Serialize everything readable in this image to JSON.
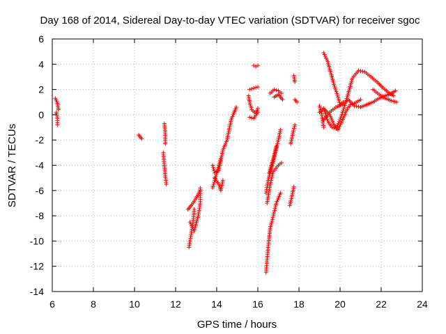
{
  "chart_data": {
    "type": "scatter",
    "title": "Day 168 of 2014, Sidereal Day-to-day VTEC variation (SDTVAR) for receiver sgoc",
    "xlabel": "GPS time / hours",
    "ylabel": "SDTVAR / TECUs",
    "xlim": [
      6,
      24
    ],
    "ylim": [
      -14,
      6
    ],
    "xticks": [
      6,
      8,
      10,
      12,
      14,
      16,
      18,
      20,
      22,
      24
    ],
    "yticks": [
      -14,
      -12,
      -10,
      -8,
      -6,
      -4,
      -2,
      0,
      2,
      4,
      6
    ],
    "grid": true,
    "marker": "plus",
    "marker_color": "#ff0000",
    "series": [
      {
        "name": "sgoc",
        "segments": [
          [
            [
              6.15,
              1.3
            ],
            [
              6.25,
              0.9
            ],
            [
              6.3,
              0.4
            ]
          ],
          [
            [
              6.2,
              0.2
            ],
            [
              6.25,
              -0.3
            ],
            [
              6.25,
              -0.8
            ]
          ],
          [
            [
              10.2,
              -1.6
            ],
            [
              10.35,
              -1.9
            ]
          ],
          [
            [
              11.45,
              -0.7
            ],
            [
              11.5,
              -1.5
            ],
            [
              11.5,
              -2.3
            ]
          ],
          [
            [
              11.4,
              -3.0
            ],
            [
              11.45,
              -4.0
            ],
            [
              11.5,
              -4.8
            ],
            [
              11.55,
              -5.5
            ]
          ],
          [
            [
              12.65,
              -10.5
            ],
            [
              12.75,
              -9.5
            ],
            [
              12.85,
              -8.5
            ],
            [
              12.9,
              -7.5
            ]
          ],
          [
            [
              12.7,
              -8.5
            ],
            [
              12.9,
              -9.2
            ],
            [
              13.1,
              -8.0
            ],
            [
              13.2,
              -7.0
            ],
            [
              13.2,
              -5.8
            ]
          ],
          [
            [
              12.6,
              -7.5
            ],
            [
              12.8,
              -7.1
            ],
            [
              13.0,
              -6.6
            ],
            [
              13.2,
              -6.0
            ]
          ],
          [
            [
              13.8,
              -5.8
            ],
            [
              13.9,
              -5.2
            ],
            [
              14.0,
              -4.6
            ],
            [
              14.1,
              -4.0
            ],
            [
              14.2,
              -3.5
            ]
          ],
          [
            [
              13.8,
              -4.0
            ],
            [
              13.9,
              -4.6
            ],
            [
              14.1,
              -4.4
            ],
            [
              14.2,
              -3.6
            ],
            [
              14.3,
              -2.8
            ],
            [
              14.5,
              -2.0
            ],
            [
              14.6,
              -1.2
            ],
            [
              14.7,
              -0.4
            ],
            [
              14.8,
              0.0
            ],
            [
              14.95,
              0.6
            ]
          ],
          [
            [
              13.9,
              -5.0
            ],
            [
              14.1,
              -5.5
            ],
            [
              14.2,
              -6.0
            ],
            [
              14.3,
              -5.2
            ]
          ],
          [
            [
              15.8,
              3.9
            ],
            [
              15.9,
              3.8
            ],
            [
              16.0,
              3.9
            ]
          ],
          [
            [
              15.6,
              2.0
            ],
            [
              15.8,
              2.1
            ],
            [
              16.0,
              2.2
            ]
          ],
          [
            [
              15.55,
              1.5
            ],
            [
              15.6,
              1.0
            ],
            [
              15.7,
              0.4
            ],
            [
              15.9,
              0.1
            ],
            [
              16.0,
              0.5
            ]
          ],
          [
            [
              15.6,
              -0.2
            ],
            [
              15.8,
              -0.3
            ],
            [
              16.0,
              0.2
            ]
          ],
          [
            [
              16.4,
              -12.5
            ],
            [
              16.5,
              -10.5
            ],
            [
              16.6,
              -9.0
            ],
            [
              16.75,
              -8.0
            ],
            [
              16.9,
              -7.0
            ],
            [
              17.1,
              -6.2
            ]
          ],
          [
            [
              16.45,
              -7.0
            ],
            [
              16.6,
              -5.5
            ],
            [
              16.75,
              -4.5
            ],
            [
              17.0,
              -4.0
            ],
            [
              17.15,
              -3.8
            ]
          ],
          [
            [
              16.4,
              -6.2
            ],
            [
              16.5,
              -5.2
            ],
            [
              16.7,
              -4.0
            ],
            [
              16.85,
              -3.0
            ],
            [
              17.0,
              -2.0
            ],
            [
              17.1,
              -1.2
            ]
          ],
          [
            [
              16.55,
              -4.6
            ],
            [
              16.75,
              -3.5
            ],
            [
              16.9,
              -2.5
            ]
          ],
          [
            [
              16.6,
              1.7
            ],
            [
              16.8,
              2.0
            ],
            [
              17.0,
              1.9
            ],
            [
              17.15,
              1.7
            ]
          ],
          [
            [
              16.8,
              1.4
            ],
            [
              17.0,
              1.6
            ],
            [
              17.2,
              1.2
            ]
          ],
          [
            [
              17.55,
              -7.2
            ],
            [
              17.65,
              -6.5
            ],
            [
              17.75,
              -5.7
            ]
          ],
          [
            [
              17.6,
              -2.3
            ],
            [
              17.7,
              -1.5
            ],
            [
              17.8,
              -0.8
            ]
          ],
          [
            [
              17.75,
              3.1
            ],
            [
              17.8,
              2.6
            ]
          ],
          [
            [
              17.8,
              1.2
            ],
            [
              17.9,
              1.0
            ]
          ],
          [
            [
              19.0,
              0.7
            ],
            [
              19.1,
              0.1
            ],
            [
              19.2,
              -1.0
            ]
          ],
          [
            [
              19.2,
              4.9
            ],
            [
              19.4,
              4.2
            ],
            [
              19.55,
              3.3
            ],
            [
              19.7,
              2.4
            ],
            [
              19.9,
              1.4
            ],
            [
              20.0,
              0.8
            ],
            [
              20.15,
              1.0
            ]
          ],
          [
            [
              19.2,
              0.5
            ],
            [
              19.4,
              -0.5
            ],
            [
              19.6,
              -1.0
            ],
            [
              19.8,
              -1.1
            ],
            [
              20.0,
              -0.4
            ],
            [
              20.2,
              0.6
            ],
            [
              20.4,
              1.7
            ],
            [
              20.6,
              2.9
            ],
            [
              20.9,
              3.5
            ],
            [
              21.2,
              3.4
            ],
            [
              21.5,
              3.0
            ],
            [
              21.8,
              2.6
            ],
            [
              22.1,
              2.1
            ],
            [
              22.4,
              1.7
            ],
            [
              22.6,
              1.5
            ]
          ],
          [
            [
              19.2,
              -0.4
            ],
            [
              19.5,
              0.2
            ],
            [
              19.8,
              0.6
            ],
            [
              20.1,
              0.8
            ],
            [
              20.4,
              1.2
            ],
            [
              20.7,
              0.7
            ],
            [
              21.0,
              0.6
            ],
            [
              21.3,
              0.8
            ],
            [
              21.6,
              1.0
            ],
            [
              21.9,
              1.3
            ],
            [
              22.2,
              1.5
            ],
            [
              22.5,
              1.7
            ],
            [
              22.7,
              1.9
            ]
          ],
          [
            [
              19.0,
              0.2
            ],
            [
              19.2,
              0.5
            ],
            [
              19.5,
              0.0
            ],
            [
              19.7,
              -0.8
            ],
            [
              19.9,
              -1.2
            ],
            [
              20.1,
              -0.5
            ],
            [
              20.3,
              0.3
            ],
            [
              20.5,
              0.8
            ],
            [
              20.7,
              0.9
            ],
            [
              21.0,
              1.2
            ]
          ],
          [
            [
              21.6,
              2.0
            ],
            [
              21.9,
              1.6
            ],
            [
              22.2,
              1.3
            ],
            [
              22.5,
              1.1
            ],
            [
              22.75,
              1.0
            ]
          ]
        ]
      }
    ]
  }
}
